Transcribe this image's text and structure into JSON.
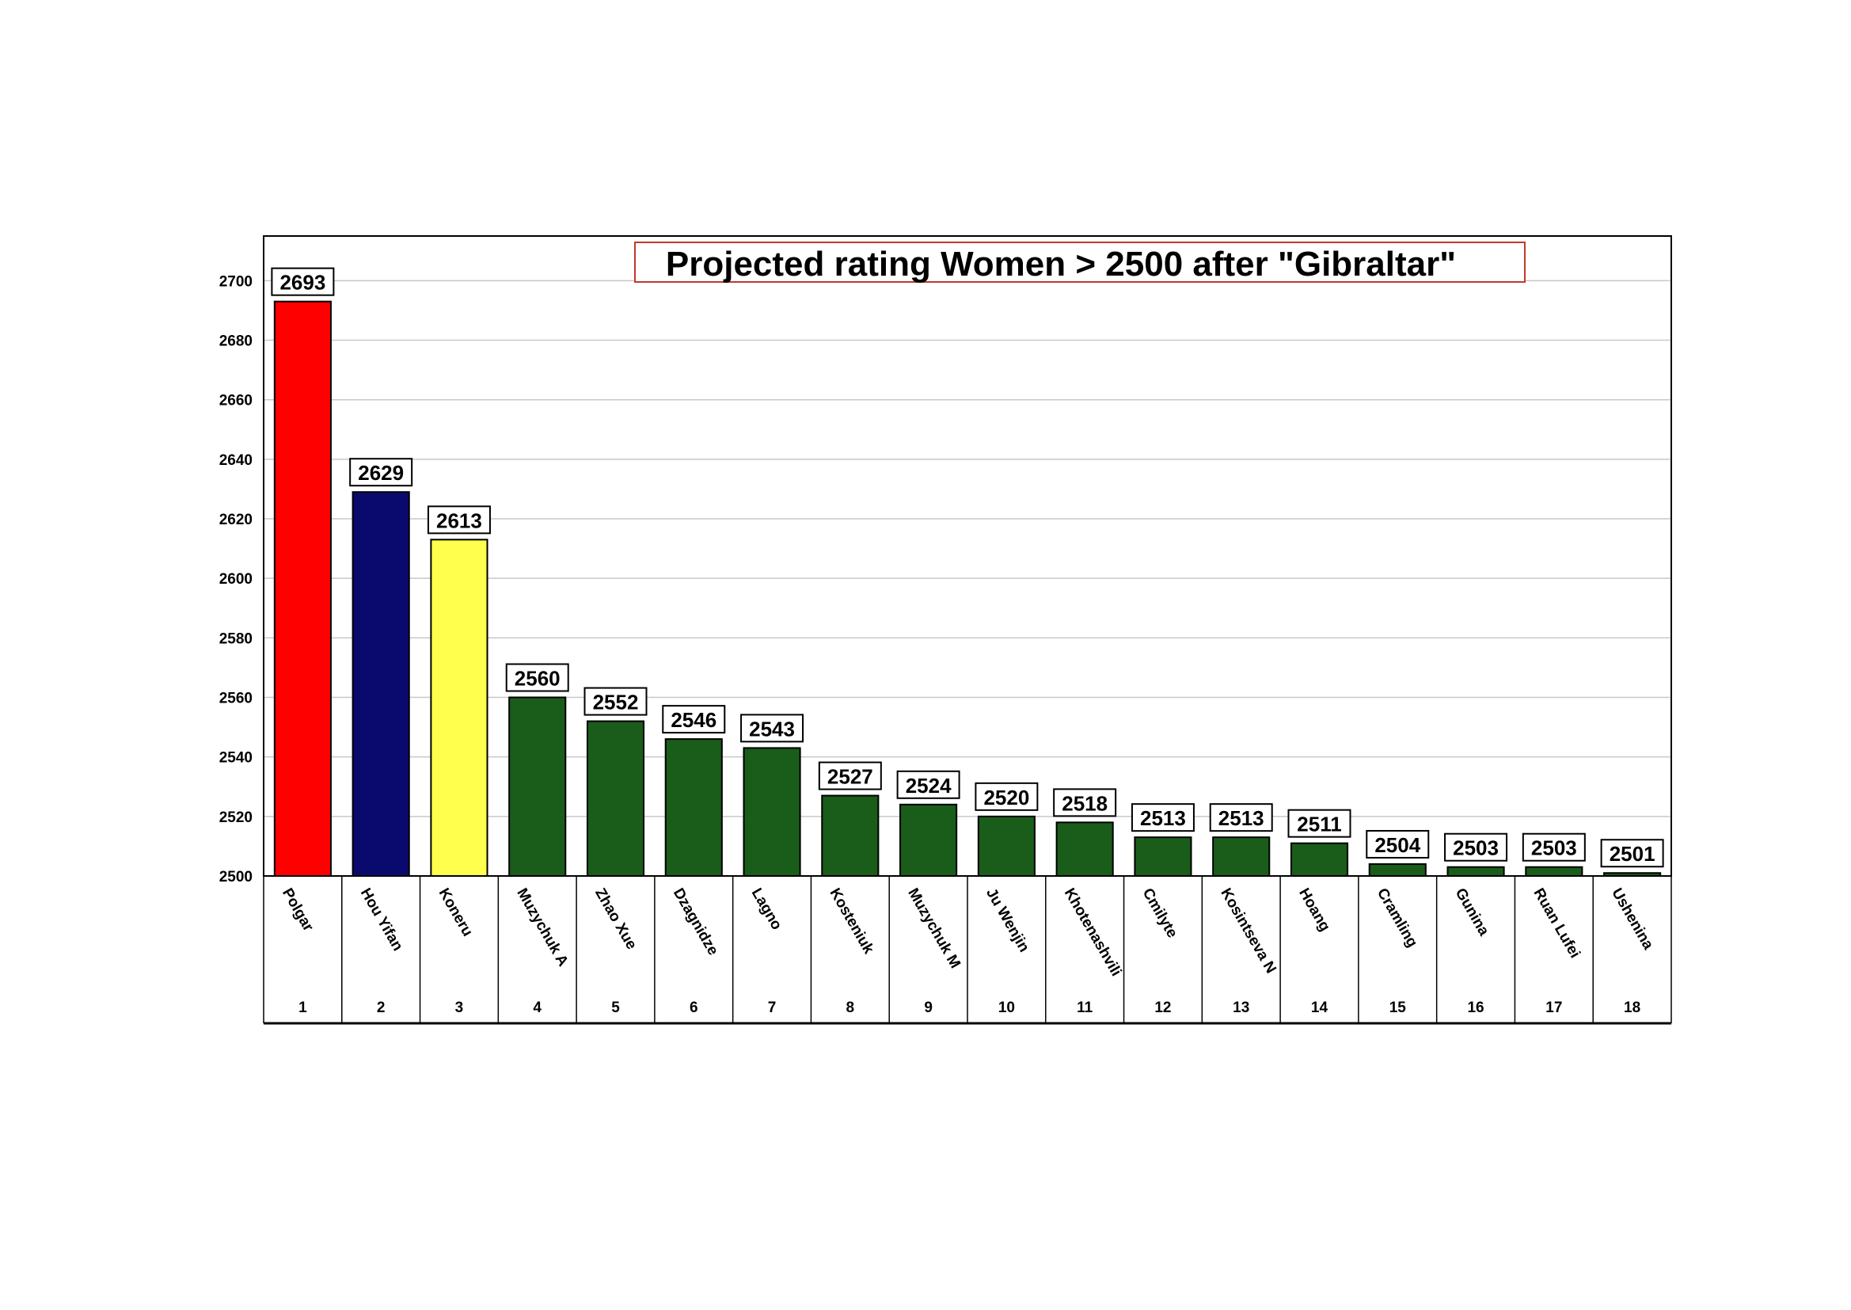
{
  "chart_data": {
    "type": "bar",
    "title": "Projected rating Women > 2500 after \"Gibraltar\"",
    "xlabel": "",
    "ylabel": "",
    "ylim": [
      2500,
      2715
    ],
    "yticks": [
      2500,
      2520,
      2540,
      2560,
      2580,
      2600,
      2620,
      2640,
      2660,
      2680,
      2700
    ],
    "grid": true,
    "categories": [
      "Polgar",
      "Hou Yifan",
      "Koneru",
      "Muzychuk A",
      "Zhao Xue",
      "Dzagnidze",
      "Lagno",
      "Kosteniuk",
      "Muzychuk M",
      "Ju Wenjin",
      "Khotenashvili",
      "Cmilyte",
      "Kosintseva N",
      "Hoang",
      "Cramling",
      "Gunina",
      "Ruan Lufei",
      "Ushenina"
    ],
    "ranks": [
      "1",
      "2",
      "3",
      "4",
      "5",
      "6",
      "7",
      "8",
      "9",
      "10",
      "11",
      "12",
      "13",
      "14",
      "15",
      "16",
      "17",
      "18"
    ],
    "values": [
      2693,
      2629,
      2613,
      2560,
      2552,
      2546,
      2543,
      2527,
      2524,
      2520,
      2518,
      2513,
      2513,
      2511,
      2504,
      2503,
      2503,
      2501
    ],
    "colors": [
      "#ff0000",
      "#0a0a6e",
      "#ffff4d",
      "#1a5c1a",
      "#1a5c1a",
      "#1a5c1a",
      "#1a5c1a",
      "#1a5c1a",
      "#1a5c1a",
      "#1a5c1a",
      "#1a5c1a",
      "#1a5c1a",
      "#1a5c1a",
      "#1a5c1a",
      "#1a5c1a",
      "#1a5c1a",
      "#1a5c1a",
      "#1a5c1a"
    ],
    "title_border_color": "#c0392b"
  }
}
